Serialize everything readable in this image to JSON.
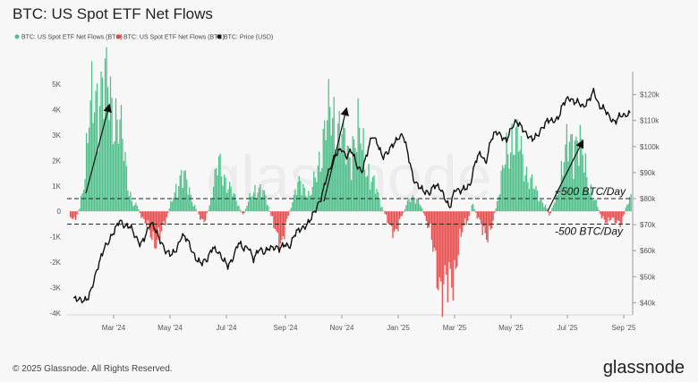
{
  "chart_data": {
    "type": "bar",
    "title": "BTC: US Spot ETF Net Flows",
    "legend": [
      {
        "name": "BTC: US Spot ETF Net Flows (BTC)",
        "color": "#4fbf8a"
      },
      {
        "name": "BTC: US Spot ETF Net Flows (BTC)",
        "color": "#e74c4c"
      },
      {
        "name": "BTC: Price (USD)",
        "color": "#111111"
      }
    ],
    "left_axis": {
      "ticks": [
        "5K",
        "4K",
        "3K",
        "2K",
        "1K",
        "0",
        "-1K",
        "-2K",
        "-3K",
        "-4K"
      ],
      "range": [
        -4000,
        5000
      ]
    },
    "right_axis": {
      "ticks": [
        "$120k",
        "$110k",
        "$100k",
        "$90k",
        "$80k",
        "$70k",
        "$60k",
        "$50k",
        "$40k"
      ],
      "range": [
        36000,
        124000
      ]
    },
    "x_ticks": [
      "Mar '24",
      "May '24",
      "Jul '24",
      "Sep '24",
      "Nov '24",
      "Jan '25",
      "Mar '25",
      "May '25",
      "Jul '25",
      "Sep '25"
    ],
    "annotations": [
      "+500 BTC/Day",
      "-500 BTC/Day"
    ],
    "reference_lines": [
      500,
      -500
    ],
    "flow_profile": [
      [
        0,
        -200
      ],
      [
        4,
        -300
      ],
      [
        8,
        200
      ],
      [
        12,
        1500
      ],
      [
        16,
        3500
      ],
      [
        20,
        4500
      ],
      [
        24,
        4900
      ],
      [
        28,
        4700
      ],
      [
        32,
        4600
      ],
      [
        36,
        4200
      ],
      [
        40,
        3500
      ],
      [
        44,
        2500
      ],
      [
        48,
        1200
      ],
      [
        52,
        300
      ],
      [
        56,
        200
      ],
      [
        60,
        -300
      ],
      [
        64,
        -600
      ],
      [
        68,
        -900
      ],
      [
        72,
        -1200
      ],
      [
        76,
        -900
      ],
      [
        80,
        -300
      ],
      [
        84,
        300
      ],
      [
        88,
        900
      ],
      [
        92,
        1400
      ],
      [
        96,
        1200
      ],
      [
        100,
        700
      ],
      [
        104,
        200
      ],
      [
        108,
        -200
      ],
      [
        112,
        -400
      ],
      [
        116,
        200
      ],
      [
        120,
        1100
      ],
      [
        124,
        1800
      ],
      [
        128,
        1500
      ],
      [
        132,
        1000
      ],
      [
        136,
        600
      ],
      [
        140,
        300
      ],
      [
        144,
        -200
      ],
      [
        148,
        300
      ],
      [
        152,
        700
      ],
      [
        156,
        1000
      ],
      [
        160,
        800
      ],
      [
        164,
        400
      ],
      [
        168,
        -300
      ],
      [
        172,
        -900
      ],
      [
        176,
        -1200
      ],
      [
        180,
        -600
      ],
      [
        184,
        200
      ],
      [
        188,
        700
      ],
      [
        192,
        1200
      ],
      [
        196,
        900
      ],
      [
        200,
        500
      ],
      [
        204,
        1200
      ],
      [
        208,
        2200
      ],
      [
        212,
        3000
      ],
      [
        216,
        3600
      ],
      [
        220,
        3800
      ],
      [
        224,
        3400
      ],
      [
        228,
        2600
      ],
      [
        232,
        2200
      ],
      [
        236,
        2800
      ],
      [
        240,
        3000
      ],
      [
        244,
        2400
      ],
      [
        248,
        1700
      ],
      [
        252,
        1200
      ],
      [
        256,
        700
      ],
      [
        260,
        200
      ],
      [
        264,
        -300
      ],
      [
        268,
        -600
      ],
      [
        272,
        -900
      ],
      [
        276,
        -300
      ],
      [
        280,
        200
      ],
      [
        284,
        500
      ],
      [
        288,
        600
      ],
      [
        292,
        300
      ],
      [
        296,
        -200
      ],
      [
        300,
        -800
      ],
      [
        304,
        -1800
      ],
      [
        308,
        -2600
      ],
      [
        312,
        -3200
      ],
      [
        316,
        -3000
      ],
      [
        320,
        -2400
      ],
      [
        324,
        -1400
      ],
      [
        328,
        -700
      ],
      [
        332,
        -300
      ],
      [
        336,
        300
      ],
      [
        340,
        -300
      ],
      [
        344,
        -700
      ],
      [
        348,
        -900
      ],
      [
        352,
        -600
      ],
      [
        356,
        300
      ],
      [
        360,
        1200
      ],
      [
        364,
        2300
      ],
      [
        368,
        3000
      ],
      [
        372,
        2700
      ],
      [
        376,
        2300
      ],
      [
        380,
        1700
      ],
      [
        384,
        1200
      ],
      [
        388,
        800
      ],
      [
        392,
        500
      ],
      [
        396,
        300
      ],
      [
        400,
        -200
      ],
      [
        404,
        400
      ],
      [
        408,
        1100
      ],
      [
        412,
        1900
      ],
      [
        416,
        2600
      ],
      [
        420,
        3000
      ],
      [
        424,
        2700
      ],
      [
        428,
        2000
      ],
      [
        432,
        1300
      ],
      [
        436,
        600
      ],
      [
        440,
        200
      ],
      [
        444,
        -300
      ],
      [
        448,
        -500
      ],
      [
        452,
        -200
      ],
      [
        456,
        -400
      ],
      [
        460,
        -600
      ],
      [
        464,
        200
      ],
      [
        468,
        500
      ]
    ],
    "price_profile": [
      [
        0,
        41500
      ],
      [
        10,
        40500
      ],
      [
        20,
        41000
      ],
      [
        30,
        43000
      ],
      [
        40,
        48000
      ],
      [
        50,
        55000
      ],
      [
        60,
        62000
      ],
      [
        70,
        64000
      ],
      [
        80,
        67000
      ],
      [
        90,
        72000
      ],
      [
        100,
        70000
      ],
      [
        110,
        69000
      ],
      [
        120,
        65000
      ],
      [
        130,
        63000
      ],
      [
        140,
        66000
      ],
      [
        150,
        70000
      ],
      [
        160,
        68000
      ],
      [
        170,
        64000
      ],
      [
        180,
        59000
      ],
      [
        190,
        58000
      ],
      [
        200,
        61000
      ],
      [
        210,
        66000
      ],
      [
        220,
        64000
      ],
      [
        230,
        60000
      ],
      [
        240,
        57000
      ],
      [
        250,
        55000
      ],
      [
        260,
        56000
      ],
      [
        270,
        62000
      ],
      [
        280,
        60000
      ],
      [
        290,
        56000
      ],
      [
        300,
        54000
      ],
      [
        310,
        58000
      ],
      [
        320,
        63000
      ],
      [
        330,
        60000
      ],
      [
        340,
        62000
      ],
      [
        350,
        57000
      ],
      [
        360,
        60000
      ],
      [
        370,
        59000
      ],
      [
        380,
        62000
      ],
      [
        390,
        61000
      ],
      [
        400,
        60000
      ],
      [
        410,
        63000
      ],
      [
        420,
        62000
      ],
      [
        430,
        66000
      ],
      [
        440,
        68000
      ],
      [
        450,
        70000
      ],
      [
        460,
        72000
      ],
      [
        470,
        75000
      ],
      [
        480,
        80000
      ],
      [
        490,
        88000
      ],
      [
        500,
        92000
      ],
      [
        510,
        97000
      ],
      [
        520,
        100000
      ],
      [
        530,
        96000
      ],
      [
        540,
        98000
      ],
      [
        550,
        93000
      ],
      [
        560,
        91000
      ],
      [
        570,
        97000
      ],
      [
        580,
        104000
      ],
      [
        590,
        102000
      ],
      [
        600,
        96000
      ],
      [
        610,
        97000
      ],
      [
        620,
        101000
      ],
      [
        630,
        104000
      ],
      [
        640,
        104000
      ],
      [
        650,
        96000
      ],
      [
        660,
        88000
      ],
      [
        670,
        85000
      ],
      [
        680,
        82000
      ],
      [
        690,
        82000
      ],
      [
        700,
        86000
      ],
      [
        710,
        84000
      ],
      [
        720,
        80000
      ],
      [
        730,
        77000
      ],
      [
        740,
        84000
      ],
      [
        750,
        82000
      ],
      [
        760,
        84000
      ],
      [
        770,
        86000
      ],
      [
        780,
        94000
      ],
      [
        790,
        97000
      ],
      [
        800,
        94000
      ],
      [
        810,
        103000
      ],
      [
        820,
        105000
      ],
      [
        830,
        104000
      ],
      [
        840,
        103000
      ],
      [
        850,
        107000
      ],
      [
        860,
        109000
      ],
      [
        870,
        108000
      ],
      [
        880,
        105000
      ],
      [
        890,
        102000
      ],
      [
        900,
        104000
      ],
      [
        910,
        108000
      ],
      [
        920,
        110000
      ],
      [
        930,
        109000
      ],
      [
        940,
        111000
      ],
      [
        950,
        117000
      ],
      [
        960,
        118000
      ],
      [
        970,
        117000
      ],
      [
        980,
        118000
      ],
      [
        990,
        115000
      ],
      [
        1000,
        117000
      ],
      [
        1010,
        122000
      ],
      [
        1020,
        116000
      ],
      [
        1030,
        114000
      ],
      [
        1040,
        111000
      ],
      [
        1050,
        110000
      ],
      [
        1060,
        112000
      ],
      [
        1070,
        111000
      ],
      [
        1080,
        113000
      ]
    ]
  },
  "footer": {
    "copyright": "© 2025 Glassnode. All Rights Reserved.",
    "brand": "glassnode",
    "watermark": "glassnode"
  }
}
